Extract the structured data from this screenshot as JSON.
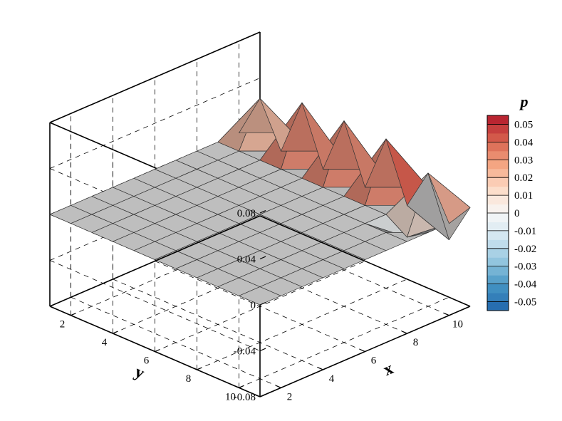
{
  "chart_data": {
    "type": "surface3d",
    "title": "",
    "x_label": "x",
    "y_label": "y",
    "z_ticks": [
      "0.08",
      "0.04",
      "0",
      "-0.04",
      "-0.08"
    ],
    "x_ticks": [
      "2",
      "4",
      "6",
      "8",
      "10"
    ],
    "y_ticks": [
      "2",
      "4",
      "6",
      "8",
      "10"
    ],
    "x_range": [
      1,
      11
    ],
    "y_range": [
      1,
      11
    ],
    "z_range": [
      -0.08,
      0.08
    ],
    "grid": true,
    "colorbar": {
      "title": "p",
      "placement": "right",
      "ticks": [
        "0.05",
        "0.04",
        "0.03",
        "0.02",
        "0.01",
        "0",
        "-0.01",
        "-0.02",
        "-0.03",
        "-0.04",
        "-0.05"
      ],
      "range": [
        -0.055,
        0.055
      ],
      "colors_high_to_low": [
        "#b2182b",
        "#d6604d",
        "#f4a582",
        "#fddbc7",
        "#f7f7f7",
        "#d1e5f0",
        "#92c5de",
        "#4393c3",
        "#2166ac"
      ]
    },
    "surface": {
      "description_of_values": "p(x,y) on integer grid x=1..11, y=1..11; zero except listed points",
      "peaks": [
        {
          "x": 10,
          "y": 2,
          "p": 0.038
        },
        {
          "x": 10,
          "y": 4,
          "p": 0.05
        },
        {
          "x": 10,
          "y": 6,
          "p": 0.05
        },
        {
          "x": 10,
          "y": 8,
          "p": 0.05
        },
        {
          "x": 10,
          "y": 10,
          "p": 0.036
        },
        {
          "x": 11,
          "y": 10,
          "p": -0.03
        },
        {
          "x": 9,
          "y": 10,
          "p": -0.012
        },
        {
          "x": 11,
          "y": 9,
          "p": 0.008
        },
        {
          "x": 11,
          "y": 11,
          "p": 0.006
        }
      ]
    }
  }
}
